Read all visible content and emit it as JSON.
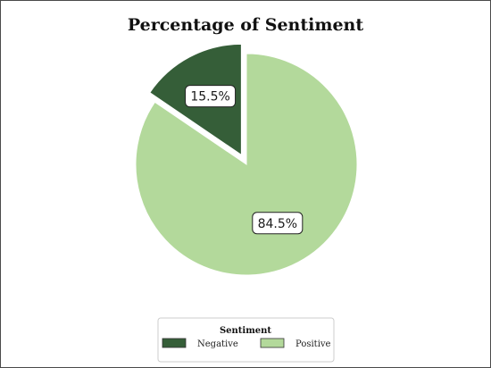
{
  "chart_data": {
    "type": "pie",
    "title": "Percentage of Sentiment",
    "categories": [
      "Negative",
      "Positive"
    ],
    "values": [
      15.5,
      84.5
    ],
    "value_labels": [
      "15.5%",
      "84.5%"
    ],
    "colors": [
      "#355e38",
      "#b3d99b"
    ],
    "exploded": [
      "Negative"
    ],
    "start": "12 o'clock, counterclockwise",
    "legend": {
      "title": "Sentiment",
      "placement": "bottom-center",
      "entries": [
        "Negative",
        "Positive"
      ]
    }
  }
}
